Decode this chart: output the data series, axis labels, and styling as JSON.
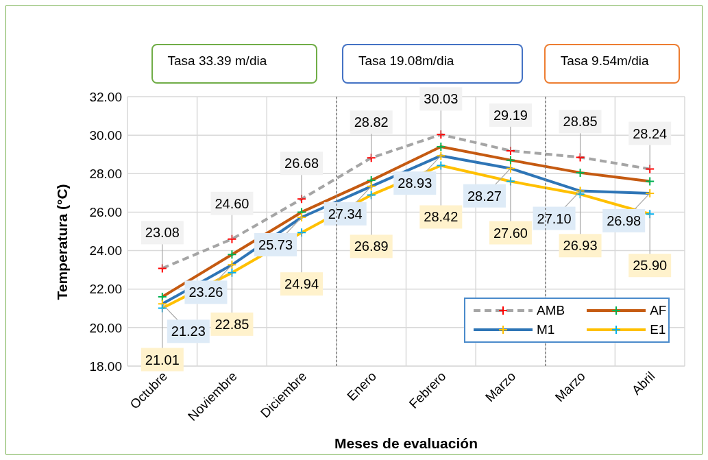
{
  "chart_data": {
    "type": "line",
    "xlabel": "Meses de evaluación",
    "ylabel": "Temperatura (°C)",
    "categories": [
      "Octubre",
      "Noviembre",
      "Diciembre",
      "Enero",
      "Febrero",
      "Marzo",
      "Marzo",
      "Abril"
    ],
    "series": [
      {
        "name": "AMB",
        "color": "#a5a5a5",
        "line_style": "dashed",
        "colors": [
          "#ff0000",
          "#ff0000",
          "#ff0000",
          "#ff0000",
          "#ff0000",
          "#ff0000",
          "#ff0000",
          "#ff0000"
        ],
        "values": [
          23.08,
          24.6,
          26.68,
          28.82,
          30.03,
          29.19,
          28.85,
          28.24
        ],
        "value_labels": [
          "23.08",
          "24.60",
          "26.68",
          "28.82",
          "30.03",
          "29.19",
          "28.85",
          "28.24"
        ]
      },
      {
        "name": "AF",
        "color": "#c55a11",
        "line_style": "solid",
        "colors": [
          "#00b050",
          "#00b050",
          "#00b050",
          "#00b050",
          "#00b050",
          "#00b050",
          "#00b050",
          "#00b050"
        ],
        "values": [
          21.6,
          23.8,
          26.0,
          27.65,
          29.4,
          28.7,
          28.05,
          27.6
        ]
      },
      {
        "name": "M1",
        "color": "#2e75b6",
        "line_style": "solid",
        "colors": [
          "#ffc000",
          "#ffc000",
          "#ffc000",
          "#ffc000",
          "#ffc000",
          "#ffc000",
          "#ffc000",
          "#ffc000"
        ],
        "values": [
          21.23,
          23.26,
          25.73,
          27.34,
          28.93,
          28.27,
          27.1,
          26.98
        ],
        "value_labels": [
          "21.23",
          "23.26",
          "25.73",
          "27.34",
          "28.93",
          "28.27",
          "27.10",
          "26.98"
        ]
      },
      {
        "name": "E1",
        "color": "#ffc000",
        "line_style": "solid",
        "colors": [
          "#00b0f0",
          "#00b0f0",
          "#00b0f0",
          "#00b0f0",
          "#00b0f0",
          "#00b0f0",
          "#00b0f0",
          "#00b0f0"
        ],
        "values": [
          21.01,
          22.85,
          24.94,
          26.89,
          28.42,
          27.6,
          26.93,
          25.9
        ],
        "value_labels": [
          "21.01",
          "22.85",
          "24.94",
          "26.89",
          "28.42",
          "27.60",
          "26.93",
          "25.90"
        ]
      }
    ],
    "ylim": [
      18,
      32
    ],
    "yticks": [
      {
        "value": 18,
        "label": "18.00"
      },
      {
        "value": 20,
        "label": "20.00"
      },
      {
        "value": 22,
        "label": "22.00"
      },
      {
        "value": 24,
        "label": "24.00"
      },
      {
        "value": 26,
        "label": "26.00"
      },
      {
        "value": 28,
        "label": "28.00"
      },
      {
        "value": 30,
        "label": "30.00"
      },
      {
        "value": 32,
        "label": "32.00"
      }
    ],
    "grid": true,
    "legend": "bottom right",
    "marker": "cross",
    "annotations": [
      "Tasa 33.39 m/dia",
      "Tasa 19.08m/dia",
      "Tasa 9.54m/dia"
    ]
  }
}
